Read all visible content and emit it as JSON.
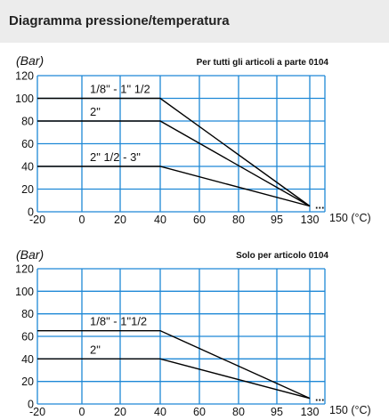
{
  "page": {
    "title": "Diagramma pressione/temperatura"
  },
  "colors": {
    "grid": "#1e88d6",
    "line": "#000000",
    "header_bg": "#ececec"
  },
  "chart_data": [
    {
      "type": "line",
      "ylabel": "(Bar)",
      "xunit": "150 (°C)",
      "note": "Per tutti gli articoli a parte 0104",
      "x_ticks": [
        "-20",
        "0",
        "20",
        "40",
        "60",
        "80",
        "95",
        "130"
      ],
      "y_ticks": [
        0,
        20,
        40,
        60,
        80,
        100,
        120
      ],
      "ylim": [
        0,
        120
      ],
      "grid": true,
      "series": [
        {
          "name": "1/8\" - 1\" 1/2",
          "points": [
            [
              "-20",
              100
            ],
            [
              "40",
              100
            ],
            [
              "130",
              5
            ]
          ]
        },
        {
          "name": "2\"",
          "points": [
            [
              "-20",
              80
            ],
            [
              "40",
              80
            ],
            [
              "130",
              5
            ]
          ]
        },
        {
          "name": "2\" 1/2 - 3\"",
          "points": [
            [
              "-20",
              40
            ],
            [
              "40",
              40
            ],
            [
              "130",
              5
            ]
          ]
        }
      ],
      "trailing_dots": "..."
    },
    {
      "type": "line",
      "ylabel": "(Bar)",
      "xunit": "150 (°C)",
      "note": "Solo per articolo 0104",
      "x_ticks": [
        "-20",
        "0",
        "20",
        "40",
        "60",
        "80",
        "95",
        "130"
      ],
      "y_ticks": [
        0,
        20,
        40,
        60,
        80,
        100,
        120
      ],
      "ylim": [
        0,
        120
      ],
      "grid": true,
      "series": [
        {
          "name": "1/8\" - 1\"1/2",
          "points": [
            [
              "-20",
              65
            ],
            [
              "40",
              65
            ],
            [
              "130",
              5
            ]
          ]
        },
        {
          "name": "2\"",
          "points": [
            [
              "-20",
              40
            ],
            [
              "40",
              40
            ],
            [
              "130",
              5
            ]
          ]
        }
      ],
      "trailing_dots": "..."
    }
  ]
}
